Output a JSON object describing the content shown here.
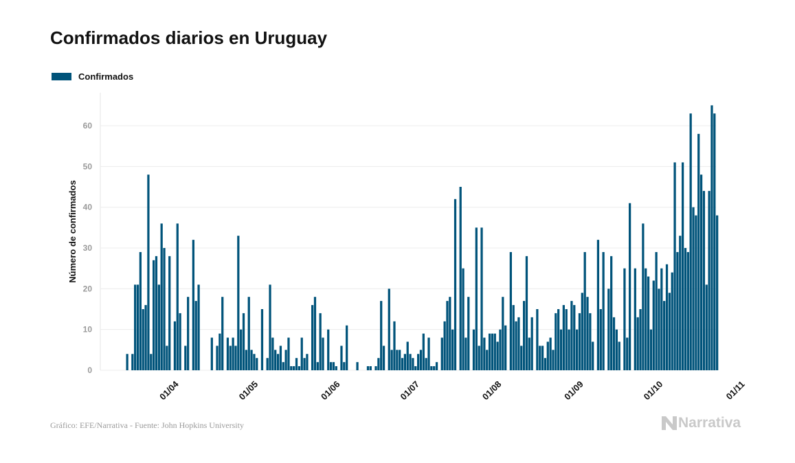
{
  "title": "Confirmados diarios en Uruguay",
  "legend": {
    "label": "Confirmados",
    "color": "#00537a"
  },
  "source": "Gráfico: EFE/Narrativa - Fuente: John Hopkins University",
  "logo": {
    "text": "Narrativa"
  },
  "chart_data": {
    "type": "bar",
    "title": "Confirmados diarios en Uruguay",
    "ylabel": "Número de confirmados",
    "xlabel": "",
    "ylim": [
      0,
      68
    ],
    "yticks": [
      0,
      10,
      20,
      30,
      40,
      50,
      60
    ],
    "grid": true,
    "legend_position": "top-left",
    "series": [
      {
        "name": "Confirmados",
        "color": "#00537a",
        "x_start": "2020-03-13",
        "values": [
          4,
          0,
          4,
          21,
          21,
          29,
          15,
          16,
          48,
          4,
          27,
          28,
          21,
          36,
          30,
          6,
          28,
          0,
          12,
          36,
          14,
          0,
          6,
          18,
          0,
          32,
          17,
          21,
          0,
          0,
          0,
          0,
          8,
          0,
          6,
          9,
          18,
          0,
          8,
          6,
          8,
          6,
          33,
          10,
          14,
          5,
          18,
          5,
          4,
          3,
          0,
          15,
          0,
          3,
          21,
          8,
          5,
          4,
          6,
          2,
          5,
          8,
          1,
          1,
          3,
          1,
          8,
          3,
          4,
          0,
          16,
          18,
          2,
          14,
          8,
          0,
          10,
          2,
          2,
          1,
          0,
          6,
          2,
          11,
          0,
          0,
          0,
          2,
          0,
          0,
          0,
          1,
          1,
          0,
          1,
          3,
          17,
          6,
          0,
          20,
          5,
          12,
          5,
          5,
          3,
          4,
          7,
          4,
          3,
          1,
          4,
          5,
          9,
          3,
          8,
          1,
          1,
          2,
          0,
          8,
          12,
          17,
          18,
          10,
          42,
          0,
          45,
          25,
          8,
          18,
          0,
          10,
          35,
          6,
          35,
          8,
          5,
          9,
          9,
          9,
          7,
          10,
          18,
          11,
          0,
          29,
          16,
          12,
          13,
          6,
          17,
          28,
          8,
          13,
          0,
          15,
          6,
          6,
          3,
          7,
          8,
          5,
          14,
          15,
          10,
          16,
          15,
          10,
          17,
          16,
          10,
          14,
          19,
          29,
          18,
          14,
          7,
          0,
          32,
          15,
          29,
          0,
          20,
          28,
          13,
          10,
          7,
          0,
          25,
          8,
          41,
          0,
          25,
          13,
          15,
          36,
          25,
          23,
          10,
          22,
          29,
          20,
          25,
          17,
          26,
          19,
          24,
          51,
          29,
          33,
          51,
          30,
          29,
          63,
          40,
          38,
          58,
          48,
          44,
          21,
          44,
          65,
          63,
          38
        ]
      }
    ],
    "xticks": [
      {
        "date": "2020-04-01",
        "label": "01/04"
      },
      {
        "date": "2020-05-01",
        "label": "01/05"
      },
      {
        "date": "2020-06-01",
        "label": "01/06"
      },
      {
        "date": "2020-07-01",
        "label": "01/07"
      },
      {
        "date": "2020-08-01",
        "label": "01/08"
      },
      {
        "date": "2020-09-01",
        "label": "01/09"
      },
      {
        "date": "2020-10-01",
        "label": "01/10"
      },
      {
        "date": "2020-11-01",
        "label": "01/11"
      }
    ]
  }
}
